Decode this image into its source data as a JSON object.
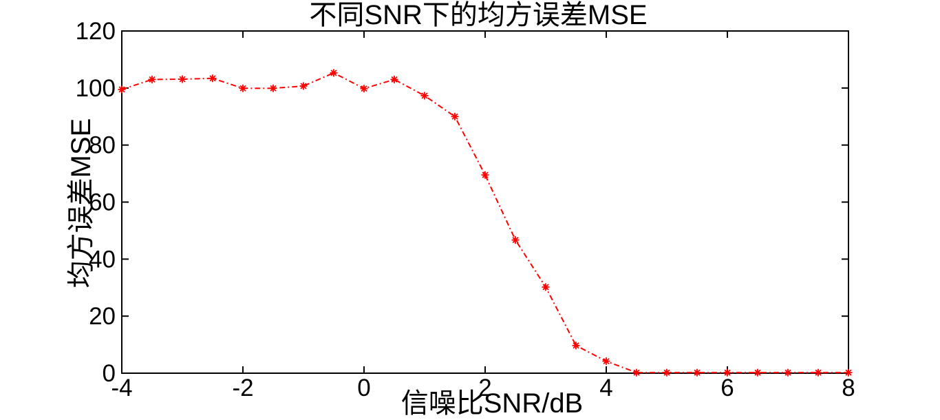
{
  "chart_data": {
    "type": "line",
    "title": "不同SNR下的均方误差MSE",
    "xlabel": "信噪比SNR/dB",
    "ylabel": "均方误差MSE",
    "x": [
      -4,
      -3.5,
      -3,
      -2.5,
      -2,
      -1.5,
      -1,
      -0.5,
      0,
      0.5,
      1,
      1.5,
      2,
      2.5,
      3,
      3.5,
      4,
      4.5,
      5,
      5.5,
      6,
      6.5,
      7,
      7.5,
      8
    ],
    "y": [
      99.5,
      103,
      103.1,
      103.4,
      99.9,
      99.9,
      100.7,
      105.3,
      99.8,
      103,
      97.3,
      90,
      69.5,
      46.7,
      30.2,
      9.7,
      4.2,
      0.2,
      0.2,
      0.2,
      0.2,
      0.2,
      0.2,
      0.2,
      0.2
    ],
    "xlim": [
      -4,
      8
    ],
    "ylim": [
      0,
      120
    ],
    "xticks": [
      -4,
      -2,
      0,
      2,
      4,
      6,
      8
    ],
    "yticks": [
      0,
      20,
      40,
      60,
      80,
      100,
      120
    ],
    "grid": false,
    "legend": "none",
    "line_color": "#ff0000",
    "line_style": "dash-dot",
    "marker": "asterisk",
    "axis_color": "#000000",
    "text_color": "#000000",
    "background_color": "#ffffff"
  }
}
